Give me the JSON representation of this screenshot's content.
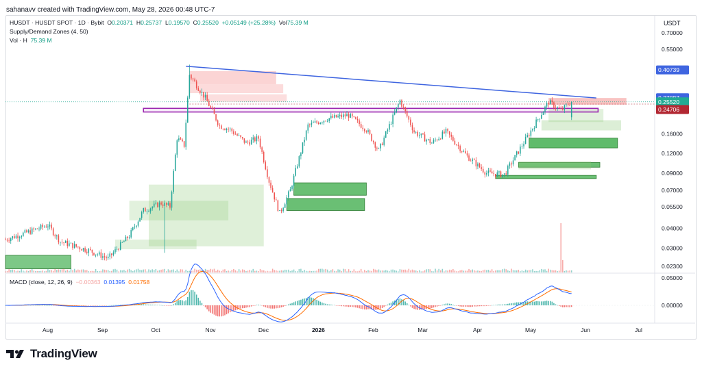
{
  "credit": "sahanavv created with TradingView.com, May 28, 2026 00:48 UTC-7",
  "brand": "TradingView",
  "currency": "USDT",
  "legend": {
    "symbol": "HUSDT · HUSDT SPOT · 1D · Bybit",
    "o_label": "O",
    "o_val": "0.20371",
    "h_label": "H",
    "h_val": "0.25737",
    "l_label": "L",
    "l_val": "0.19570",
    "c_label": "C",
    "c_val": "0.25520",
    "change": "+0.05149 (+25.28%)",
    "vol_label": "Vol",
    "vol_val": "75.39 M",
    "indicator": "Supply/Demand Zones (4, 50)",
    "vol_h_label": "Vol · H",
    "vol_h_val": "75.39 M",
    "macd_label": "MACD (close, 12, 26, 9)",
    "macd_hist": "−0.00363",
    "macd_line": "0.01395",
    "macd_signal": "0.01758"
  },
  "colors": {
    "up": "#26a69a",
    "down": "#ef5350",
    "trendline": "#3f65e0",
    "zone_purple": "#9c27b0",
    "price_tag": "#22ab94",
    "level_red": "#b22833",
    "resistance_tag": "#3f65e0",
    "macd_line": "#2962ff",
    "signal_line": "#ff6d00",
    "supply": "#f7b6b6",
    "demand": "#5cb85c"
  },
  "price_axis": {
    "scale": "log",
    "ticks": [
      "0.70000",
      "0.55000",
      "0.16000",
      "0.12000",
      "0.09000",
      "0.07000",
      "0.05500",
      "0.04000",
      "0.03000",
      "0.02300"
    ],
    "tags": [
      {
        "label": "0.40739",
        "kind": "resistance"
      },
      {
        "label": "0.27097",
        "kind": "resistance"
      },
      {
        "label": "0.25520",
        "kind": "last"
      },
      {
        "label": "0.24706",
        "kind": "level"
      }
    ]
  },
  "macd_axis": {
    "ticks": [
      "0.05000",
      "0.00000"
    ]
  },
  "time_axis": [
    "Aug",
    "Sep",
    "Oct",
    "Nov",
    "Dec",
    "2026",
    "Feb",
    "Mar",
    "Apr",
    "May",
    "Jun",
    "Jul"
  ],
  "chart_data": {
    "type": "candlestick",
    "title": "HUSDT · HUSDT SPOT · 1D · Bybit",
    "ylabel": "USDT",
    "yscale": "log",
    "ylim": [
      0.021,
      0.9
    ],
    "x_range": [
      "2025-07-12",
      "2026-07-14"
    ],
    "closes": [
      {
        "date": "2025-07-12",
        "close": 0.034
      },
      {
        "date": "2025-07-25",
        "close": 0.038
      },
      {
        "date": "2025-08-05",
        "close": 0.042
      },
      {
        "date": "2025-08-12",
        "close": 0.033
      },
      {
        "date": "2025-08-28",
        "close": 0.029
      },
      {
        "date": "2025-09-08",
        "close": 0.0258
      },
      {
        "date": "2025-09-20",
        "close": 0.036
      },
      {
        "date": "2025-09-28",
        "close": 0.052
      },
      {
        "date": "2025-10-08",
        "close": 0.058
      },
      {
        "date": "2025-10-13",
        "close": 0.055
      },
      {
        "date": "2025-10-17",
        "close": 0.15
      },
      {
        "date": "2025-10-21",
        "close": 0.135
      },
      {
        "date": "2025-10-24",
        "close": 0.38
      },
      {
        "date": "2025-11-02",
        "close": 0.27
      },
      {
        "date": "2025-11-10",
        "close": 0.18
      },
      {
        "date": "2025-11-16",
        "close": 0.17
      },
      {
        "date": "2025-11-25",
        "close": 0.14
      },
      {
        "date": "2025-12-02",
        "close": 0.15
      },
      {
        "date": "2025-12-08",
        "close": 0.08
      },
      {
        "date": "2025-12-14",
        "close": 0.05
      },
      {
        "date": "2025-12-20",
        "close": 0.07
      },
      {
        "date": "2025-12-30",
        "close": 0.18
      },
      {
        "date": "2026-01-10",
        "close": 0.2
      },
      {
        "date": "2026-01-22",
        "close": 0.21
      },
      {
        "date": "2026-02-01",
        "close": 0.17
      },
      {
        "date": "2026-02-08",
        "close": 0.125
      },
      {
        "date": "2026-02-20",
        "close": 0.26
      },
      {
        "date": "2026-02-28",
        "close": 0.165
      },
      {
        "date": "2026-03-10",
        "close": 0.14
      },
      {
        "date": "2026-03-18",
        "close": 0.165
      },
      {
        "date": "2026-03-30",
        "close": 0.115
      },
      {
        "date": "2026-04-10",
        "close": 0.09
      },
      {
        "date": "2026-04-20",
        "close": 0.088
      },
      {
        "date": "2026-04-30",
        "close": 0.135
      },
      {
        "date": "2026-05-08",
        "close": 0.19
      },
      {
        "date": "2026-05-15",
        "close": 0.255
      },
      {
        "date": "2026-05-22",
        "close": 0.225
      },
      {
        "date": "2026-05-28",
        "close": 0.2552
      }
    ],
    "last": {
      "open": 0.20371,
      "high": 0.25737,
      "low": 0.1957,
      "close": 0.2552
    },
    "series": [
      {
        "name": "MACD (close, 12, 26, 9)",
        "type": "macd",
        "last_macd": 0.01395,
        "last_signal": 0.01758,
        "last_hist": -0.00363
      }
    ],
    "levels": [
      0.40739,
      0.27097,
      0.2552,
      0.24706
    ]
  }
}
